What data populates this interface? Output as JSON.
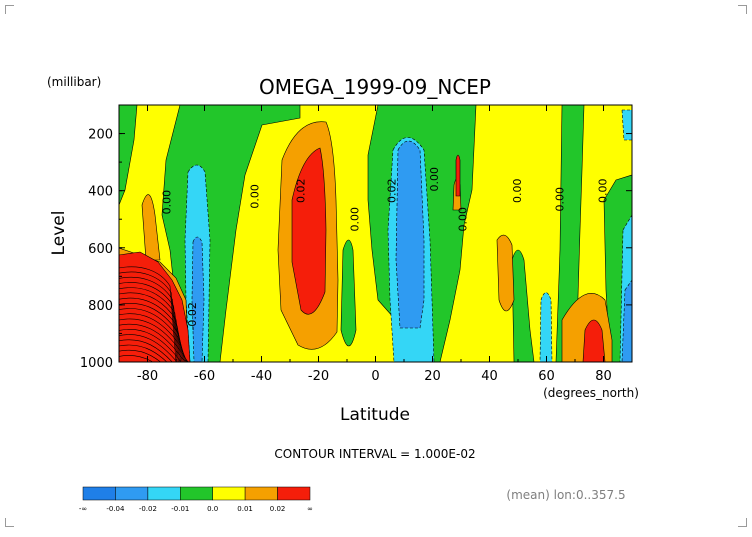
{
  "chart_data": {
    "type": "heatmap",
    "title": "OMEGA_1999-09_NCEP",
    "xlabel": "Latitude",
    "xunits": "(degrees_north)",
    "ylabel": "Level",
    "yunits": "(millibar)",
    "xlim": [
      -90,
      90
    ],
    "ylim": [
      1000,
      100
    ],
    "y_axis_reversed": true,
    "x_ticks": [
      "-80",
      "-60",
      "-40",
      "-20",
      "0",
      "20",
      "40",
      "60",
      "80"
    ],
    "y_ticks": [
      "200",
      "400",
      "600",
      "800",
      "1000"
    ],
    "contour_interval_text": "CONTOUR INTERVAL = 1.000E-02",
    "mean_text": "(mean) lon:0..357.5",
    "contour_labels": [
      {
        "text": "0.00",
        "lat": -72,
        "level": 440
      },
      {
        "text": "0.00",
        "lat": -41,
        "level": 420
      },
      {
        "text": "0.02",
        "lat": -25,
        "level": 400
      },
      {
        "text": "0.00",
        "lat": -6,
        "level": 500
      },
      {
        "text": "0.02",
        "lat": 7,
        "level": 400
      },
      {
        "text": "0.00",
        "lat": 22,
        "level": 360
      },
      {
        "text": "0.00",
        "lat": 32,
        "level": 500
      },
      {
        "text": "0.00",
        "lat": 51,
        "level": 400
      },
      {
        "text": "0.00",
        "lat": 66,
        "level": 430
      },
      {
        "text": "0.00",
        "lat": 81,
        "level": 400
      },
      {
        "text": "-0.02",
        "lat": -63,
        "level": 840
      }
    ],
    "colorbar": {
      "labels": [
        "-∞",
        "-0.04",
        "-0.02",
        "-0.01",
        "0.0",
        "0.01",
        "0.02",
        "∞"
      ],
      "colors": [
        "#1f7fe8",
        "#2f9bf2",
        "#34d6f6",
        "#22c62a",
        "#ffff00",
        "#f5a000",
        "#f51e0a"
      ]
    }
  }
}
